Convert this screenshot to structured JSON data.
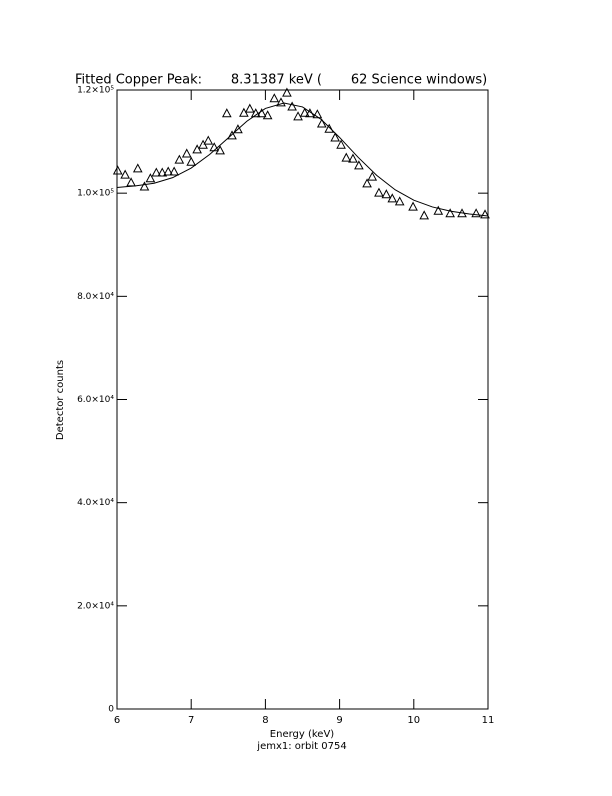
{
  "chart_data": {
    "type": "scatter",
    "title": "Fitted Copper Peak:       8.31387 keV (       62 Science windows)",
    "x_label": "Energy (keV)",
    "y_label": "Detector counts",
    "subtitle": "jemx1: orbit 0754",
    "xlim": [
      6,
      11
    ],
    "xticks": [
      6,
      7,
      8,
      9,
      10,
      11
    ],
    "ylim": [
      0,
      120000
    ],
    "yticks": [
      0,
      {
        "value": 20000,
        "label": "2.0×10⁴"
      },
      {
        "value": 40000,
        "label": "4.0×10⁴"
      },
      {
        "value": 60000,
        "label": "6.0×10⁴"
      },
      {
        "value": 80000,
        "label": "8.0×10⁴"
      },
      {
        "value": 100000,
        "label": "1.0×10⁵"
      },
      {
        "value": 120000,
        "label": "1.2×10⁵"
      }
    ],
    "color": "#000000",
    "series": [
      {
        "marker": "triangle",
        "x": [
          6.01,
          6.11,
          6.19,
          6.28,
          6.37,
          6.45,
          6.53,
          6.61,
          6.69,
          6.77,
          6.84,
          6.94,
          7.0,
          7.08,
          7.16,
          7.23,
          7.31,
          7.39,
          7.48,
          7.55,
          7.63,
          7.71,
          7.79,
          7.87,
          7.95,
          8.03,
          8.12,
          8.21,
          8.29,
          8.36,
          8.44,
          8.53,
          8.6,
          8.7,
          8.76,
          8.86,
          8.94,
          9.02,
          9.09,
          9.18,
          9.26,
          9.37,
          9.44,
          9.53,
          9.63,
          9.71,
          9.81,
          9.99,
          10.14,
          10.33,
          10.49,
          10.65,
          10.84,
          10.96
        ],
        "values": [
          104300,
          103500,
          102000,
          104700,
          101200,
          102800,
          103900,
          103900,
          104100,
          104100,
          106400,
          107600,
          106000,
          108400,
          109300,
          110100,
          108800,
          108200,
          115400,
          111100,
          112300,
          115500,
          116300,
          115400,
          115400,
          115000,
          118300,
          117500,
          119400,
          116700,
          114800,
          115500,
          115400,
          115200,
          113400,
          112400,
          110700,
          109300,
          106800,
          106600,
          105300,
          101800,
          103100,
          100000,
          99700,
          98900,
          98300,
          97300,
          95600,
          96500,
          96000,
          96000,
          96000,
          95800
        ]
      },
      {
        "marker": "line",
        "x": [
          6,
          6.25,
          6.5,
          6.75,
          7,
          7.25,
          7.5,
          7.75,
          8,
          8.25,
          8.5,
          8.75,
          9,
          9.25,
          9.5,
          9.75,
          10,
          10.25,
          10.5,
          10.75,
          11
        ],
        "values": [
          101090,
          101420,
          101920,
          103010,
          104870,
          107520,
          110730,
          113950,
          116430,
          117470,
          116720,
          114320,
          110800,
          106950,
          103440,
          100640,
          98640,
          97330,
          96500,
          95960,
          95570
        ]
      }
    ]
  }
}
